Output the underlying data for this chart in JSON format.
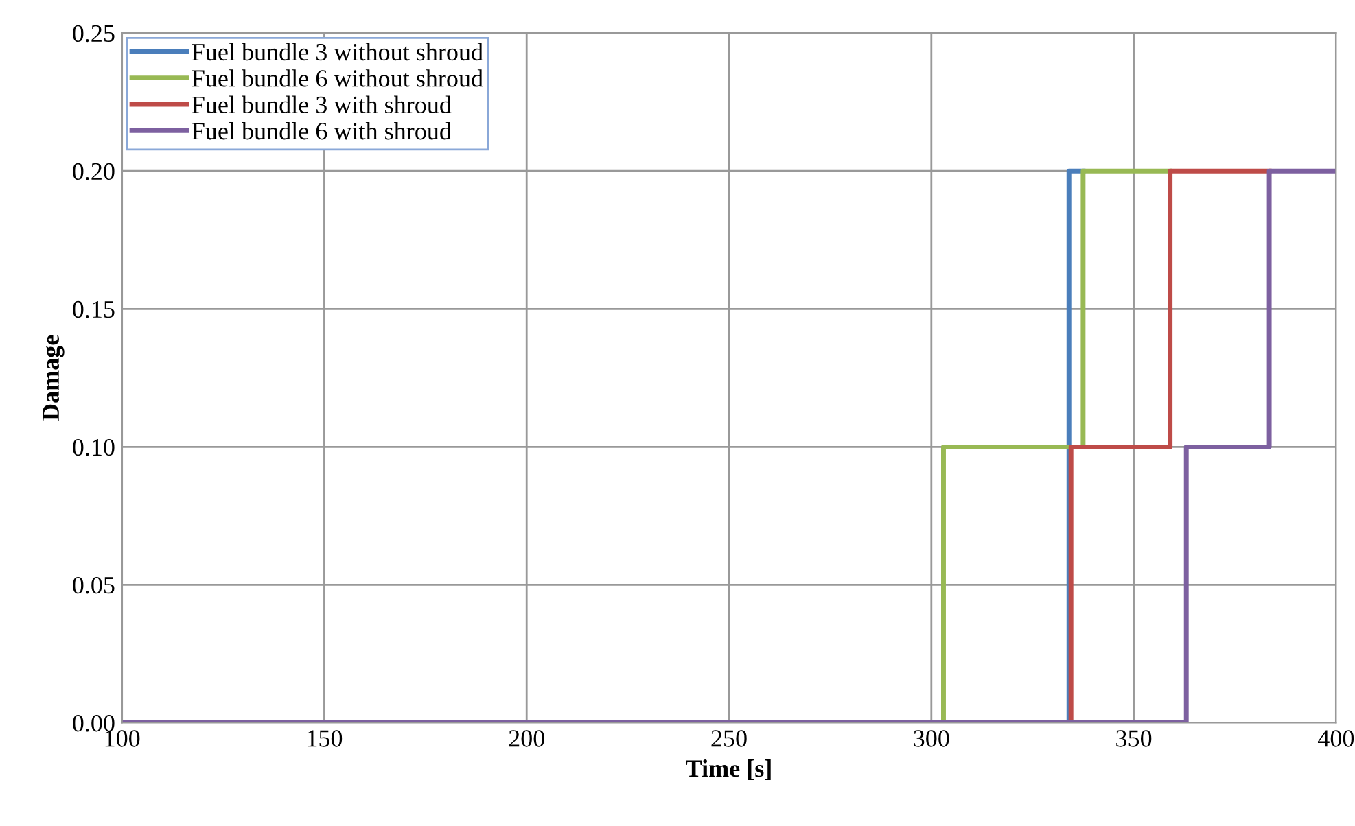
{
  "chart_data": {
    "type": "line",
    "xlabel": "Time [s]",
    "ylabel": "Damage",
    "series": [
      {
        "name": "Fuel bundle 3 without shroud",
        "color": "#4a7ebb",
        "x": [
          334,
          334,
          337.5
        ],
        "values": [
          0,
          0.2,
          0.2
        ]
      },
      {
        "name": "Fuel bundle 6 without shroud",
        "color": "#98b954",
        "x": [
          303,
          303,
          337.5,
          337.5,
          359
        ],
        "values": [
          0,
          0.1,
          0.1,
          0.2,
          0.2
        ]
      },
      {
        "name": "Fuel bundle 3 with shroud",
        "color": "#be4b48",
        "x": [
          334.5,
          334.5,
          359,
          359,
          383.5
        ],
        "values": [
          0,
          0.1,
          0.1,
          0.2,
          0.2
        ]
      },
      {
        "name": "Fuel bundle 6 with shroud",
        "color": "#7d60a0",
        "x": [
          100,
          363,
          363,
          383.5,
          383.5,
          400
        ],
        "values": [
          0,
          0,
          0.1,
          0.1,
          0.2,
          0.2
        ]
      }
    ],
    "xlim": [
      100,
      400
    ],
    "xticks": [
      100,
      150,
      200,
      250,
      300,
      350,
      400
    ],
    "ylim": [
      0,
      0.25
    ],
    "yticks": [
      {
        "value": 0,
        "label": "0.00"
      },
      {
        "value": 0.05,
        "label": "0.05"
      },
      {
        "value": 0.1,
        "label": "0.10"
      },
      {
        "value": 0.15,
        "label": "0.15"
      },
      {
        "value": 0.2,
        "label": "0.20"
      },
      {
        "value": 0.25,
        "label": "0.25"
      }
    ],
    "grid": true,
    "legend": "top left",
    "line_style": "solid",
    "marker": "none"
  }
}
